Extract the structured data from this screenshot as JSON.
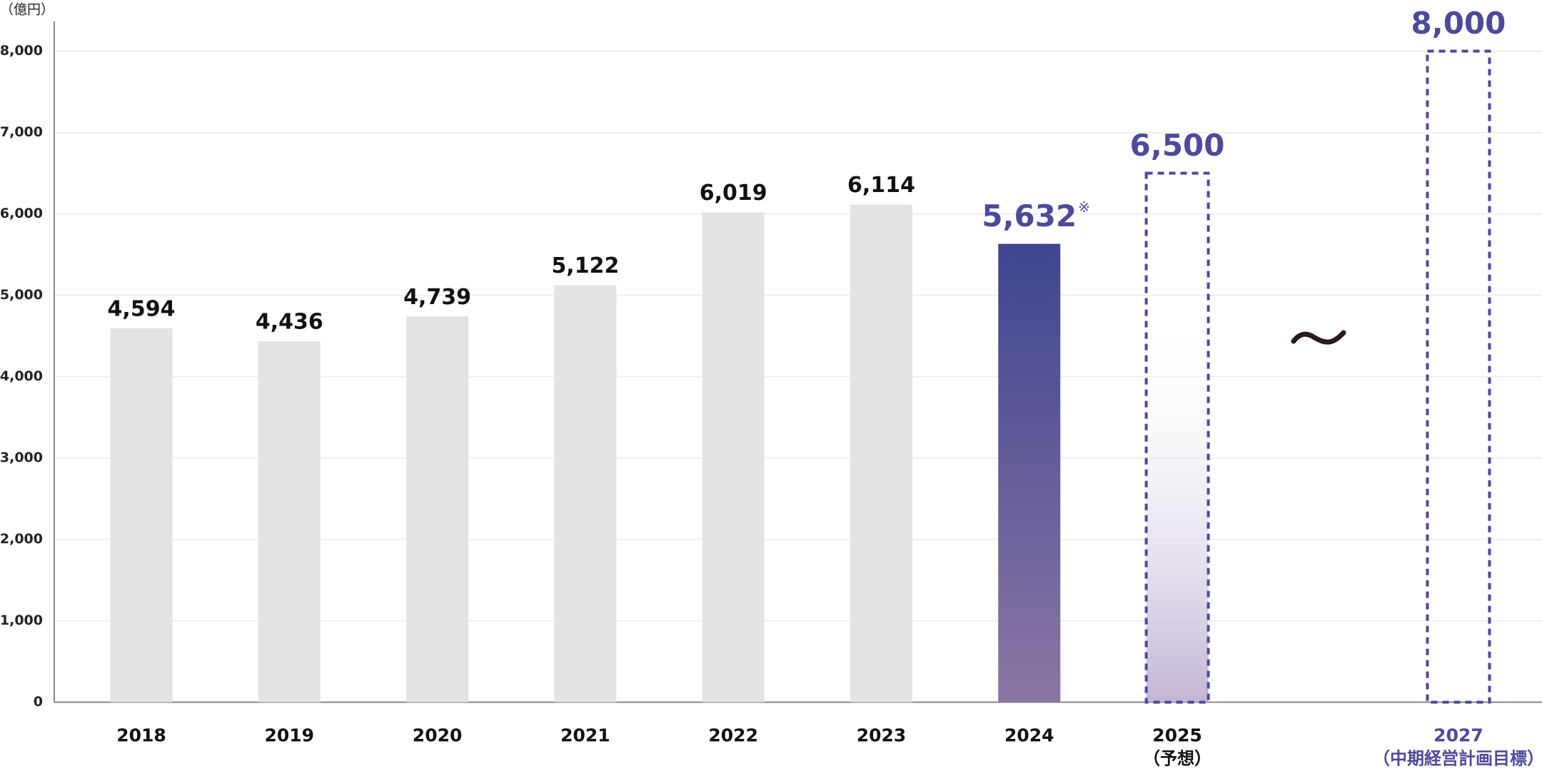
{
  "chart_data": {
    "type": "bar",
    "y_unit": "（億円）",
    "categories": [
      "2018",
      "2019",
      "2020",
      "2021",
      "2022",
      "2023",
      "2024",
      "2025",
      "2027"
    ],
    "category_sublabels": [
      null,
      null,
      null,
      null,
      null,
      null,
      null,
      "（予想）",
      "（中期経営計画目標）"
    ],
    "values": [
      4594,
      4436,
      4739,
      5122,
      6019,
      6114,
      5632,
      6500,
      8000
    ],
    "value_labels": [
      "4,594",
      "4,436",
      "4,739",
      "5,122",
      "6,019",
      "6,114",
      "5,632",
      "6,500",
      "8,000"
    ],
    "value_label_marks": [
      null,
      null,
      null,
      null,
      null,
      null,
      "※",
      null,
      null
    ],
    "bar_styles": [
      "actual",
      "actual",
      "actual",
      "actual",
      "actual",
      "actual",
      "highlight",
      "forecast",
      "target"
    ],
    "colors": {
      "actual": "#e3e3e3",
      "highlight": "#3f4590",
      "forecast": "#4c4a9a",
      "target": "#4c4a9a"
    },
    "ylim": [
      0,
      8000
    ],
    "yticks": [
      0,
      {
        "value": 1000,
        "label": "1,000"
      },
      {
        "value": 2000,
        "label": "2,000"
      },
      {
        "value": 3000,
        "label": "3,000"
      },
      {
        "value": 4000,
        "label": "4,000"
      },
      {
        "value": 5000,
        "label": "5,000"
      },
      {
        "value": 6000,
        "label": "6,000"
      },
      {
        "value": 7000,
        "label": "7,000"
      },
      {
        "value": 8000,
        "label": "8,000"
      }
    ],
    "grid": true
  }
}
